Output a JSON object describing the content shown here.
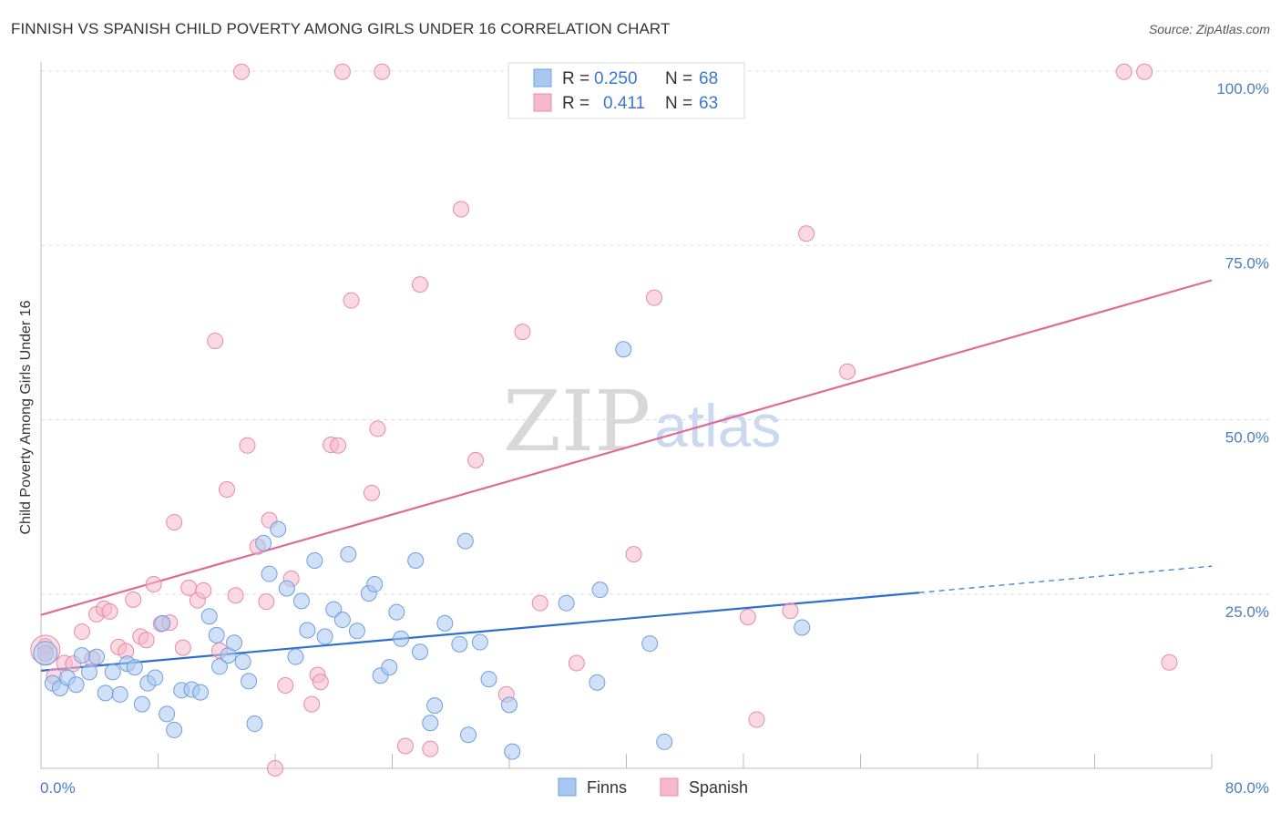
{
  "title": "FINNISH VS SPANISH CHILD POVERTY AMONG GIRLS UNDER 16 CORRELATION CHART",
  "source": "Source: ZipAtlas.com",
  "watermark": {
    "zip": "ZIP",
    "atlas": "atlas"
  },
  "colors": {
    "finns": "#a9c8f0",
    "finns_stroke": "#6f9fe0",
    "finns_line": "#2f70cf",
    "spanish": "#f6b9cc",
    "spanish_stroke": "#e88aa8",
    "spanish_line": "#e06a96",
    "tick_label": "#4a7cc7"
  },
  "legend": {
    "rows": [
      {
        "r_label": "R =",
        "r_value": "0.250",
        "n_label": "N =",
        "n_value": "68"
      },
      {
        "r_label": "R =",
        "r_value": "0.411",
        "n_label": "N =",
        "n_value": "63"
      }
    ]
  },
  "bottom_legend": [
    "Finns",
    "Spanish"
  ],
  "chart_data": {
    "type": "scatter",
    "title": "FINNISH VS SPANISH CHILD POVERTY AMONG GIRLS UNDER 16 CORRELATION CHART",
    "xlabel": "",
    "ylabel": "Child Poverty Among Girls Under 16",
    "xlim": [
      0,
      80
    ],
    "ylim": [
      0,
      100
    ],
    "x_tick_labels": [
      "0.0%",
      "80.0%"
    ],
    "y_ticks": [
      25,
      50,
      75,
      100
    ],
    "y_tick_labels": [
      "25.0%",
      "50.0%",
      "75.0%",
      "100.0%"
    ],
    "grid": true,
    "legend_position": "top-center",
    "series": [
      {
        "name": "Finns",
        "r": 0.25,
        "n": 68,
        "trend": {
          "x0": 0,
          "y0": 14.0,
          "x1": 60,
          "y1": 25.2,
          "dashed_to_x": 80,
          "dashed_to_y": 29.0
        },
        "points": [
          [
            0.3,
            16.5
          ],
          [
            0.8,
            12.2
          ],
          [
            1.3,
            11.5
          ],
          [
            1.8,
            13.0
          ],
          [
            2.4,
            12.0
          ],
          [
            2.8,
            16.2
          ],
          [
            3.3,
            13.8
          ],
          [
            3.8,
            16.0
          ],
          [
            4.4,
            10.8
          ],
          [
            4.9,
            13.8
          ],
          [
            5.4,
            10.6
          ],
          [
            5.9,
            15.0
          ],
          [
            6.4,
            14.5
          ],
          [
            6.9,
            9.2
          ],
          [
            7.3,
            12.2
          ],
          [
            7.8,
            13.0
          ],
          [
            8.3,
            20.8
          ],
          [
            8.6,
            7.8
          ],
          [
            9.1,
            5.5
          ],
          [
            9.6,
            11.2
          ],
          [
            10.3,
            11.3
          ],
          [
            10.9,
            10.9
          ],
          [
            11.5,
            21.8
          ],
          [
            12.0,
            19.1
          ],
          [
            12.2,
            14.6
          ],
          [
            12.8,
            16.2
          ],
          [
            13.2,
            18.0
          ],
          [
            13.8,
            15.3
          ],
          [
            14.2,
            12.5
          ],
          [
            14.6,
            6.4
          ],
          [
            15.2,
            32.3
          ],
          [
            15.6,
            27.9
          ],
          [
            16.2,
            34.3
          ],
          [
            16.8,
            25.8
          ],
          [
            17.4,
            16.0
          ],
          [
            17.8,
            24.0
          ],
          [
            18.2,
            19.8
          ],
          [
            18.7,
            29.8
          ],
          [
            19.4,
            18.9
          ],
          [
            20.0,
            22.8
          ],
          [
            20.6,
            21.3
          ],
          [
            21.0,
            30.7
          ],
          [
            21.6,
            19.7
          ],
          [
            22.4,
            25.1
          ],
          [
            22.8,
            26.4
          ],
          [
            23.2,
            13.3
          ],
          [
            23.8,
            14.5
          ],
          [
            24.3,
            22.4
          ],
          [
            24.6,
            18.6
          ],
          [
            25.6,
            29.8
          ],
          [
            25.9,
            16.7
          ],
          [
            26.6,
            6.5
          ],
          [
            26.9,
            9.0
          ],
          [
            27.6,
            20.8
          ],
          [
            28.6,
            17.8
          ],
          [
            29.0,
            32.6
          ],
          [
            29.2,
            4.8
          ],
          [
            30.0,
            18.1
          ],
          [
            30.6,
            12.8
          ],
          [
            32.0,
            9.1
          ],
          [
            32.2,
            2.4
          ],
          [
            35.9,
            23.7
          ],
          [
            38.0,
            12.3
          ],
          [
            38.2,
            25.6
          ],
          [
            39.8,
            60.1
          ],
          [
            41.6,
            17.9
          ],
          [
            42.6,
            3.8
          ],
          [
            52.0,
            20.2
          ]
        ]
      },
      {
        "name": "Spanish",
        "r": 0.411,
        "n": 63,
        "trend": {
          "x0": 0,
          "y0": 22.0,
          "x1": 80,
          "y1": 70.0
        },
        "points": [
          [
            0.3,
            17.5
          ],
          [
            0.9,
            13.2
          ],
          [
            1.6,
            15.1
          ],
          [
            2.2,
            15.0
          ],
          [
            2.8,
            19.6
          ],
          [
            3.5,
            15.7
          ],
          [
            3.8,
            22.1
          ],
          [
            4.3,
            22.9
          ],
          [
            4.7,
            22.5
          ],
          [
            5.3,
            17.4
          ],
          [
            5.8,
            16.8
          ],
          [
            6.3,
            24.2
          ],
          [
            6.8,
            18.9
          ],
          [
            7.2,
            18.4
          ],
          [
            7.7,
            26.4
          ],
          [
            8.2,
            20.7
          ],
          [
            8.8,
            20.9
          ],
          [
            9.1,
            35.3
          ],
          [
            9.7,
            17.3
          ],
          [
            10.1,
            25.9
          ],
          [
            10.7,
            24.1
          ],
          [
            11.1,
            25.5
          ],
          [
            11.9,
            61.3
          ],
          [
            12.2,
            16.9
          ],
          [
            12.7,
            40.0
          ],
          [
            13.3,
            24.8
          ],
          [
            13.7,
            99.9
          ],
          [
            14.1,
            46.3
          ],
          [
            14.8,
            31.8
          ],
          [
            15.4,
            23.9
          ],
          [
            15.6,
            35.6
          ],
          [
            16.7,
            11.9
          ],
          [
            17.1,
            27.2
          ],
          [
            18.5,
            9.2
          ],
          [
            18.9,
            13.4
          ],
          [
            19.1,
            12.4
          ],
          [
            19.8,
            46.4
          ],
          [
            20.3,
            46.3
          ],
          [
            20.6,
            99.9
          ],
          [
            21.2,
            67.1
          ],
          [
            22.6,
            39.5
          ],
          [
            23.0,
            48.7
          ],
          [
            23.3,
            99.9
          ],
          [
            24.9,
            3.2
          ],
          [
            25.9,
            69.4
          ],
          [
            26.6,
            2.8
          ],
          [
            28.7,
            80.2
          ],
          [
            29.7,
            44.2
          ],
          [
            31.8,
            10.6
          ],
          [
            32.9,
            62.6
          ],
          [
            34.1,
            23.7
          ],
          [
            36.6,
            15.1
          ],
          [
            40.5,
            30.7
          ],
          [
            41.9,
            67.5
          ],
          [
            48.3,
            21.7
          ],
          [
            48.9,
            7.0
          ],
          [
            51.2,
            22.6
          ],
          [
            52.3,
            76.7
          ],
          [
            55.1,
            56.9
          ],
          [
            74.0,
            99.9
          ],
          [
            75.4,
            99.9
          ],
          [
            77.1,
            15.2
          ],
          [
            16.0,
            0.0
          ]
        ]
      }
    ]
  }
}
